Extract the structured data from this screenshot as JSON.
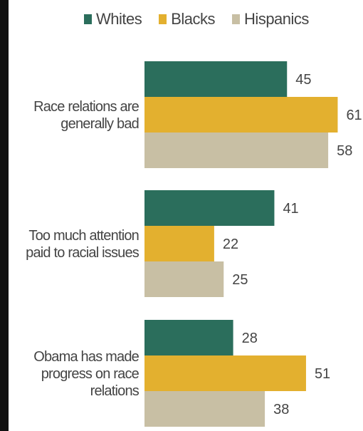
{
  "chart_data": {
    "type": "bar",
    "orientation": "horizontal",
    "legend_position": "top",
    "categories": [
      "Race relations are generally bad",
      "Too much attention paid to racial issues",
      "Obama has made progress on race relations"
    ],
    "category_lines": [
      [
        "Race relations are",
        "generally bad"
      ],
      [
        "Too much attention",
        "paid to racial issues"
      ],
      [
        "Obama has made",
        "progress on race",
        "relations"
      ]
    ],
    "series": [
      {
        "name": "Whites",
        "color": "#2b6e5c",
        "values": [
          45,
          41,
          28
        ]
      },
      {
        "name": "Blacks",
        "color": "#e3b02f",
        "values": [
          61,
          22,
          51
        ]
      },
      {
        "name": "Hispanics",
        "color": "#c8bfa4",
        "values": [
          58,
          25,
          38
        ]
      }
    ],
    "xlim": [
      0,
      65
    ],
    "grid": false
  }
}
